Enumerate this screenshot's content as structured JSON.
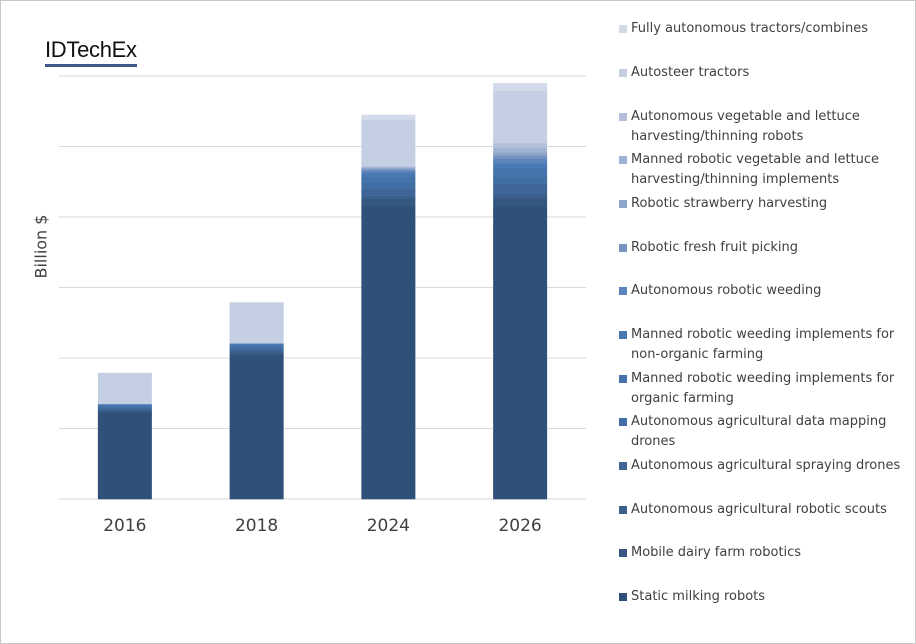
{
  "logo": "IDTechEx",
  "chart_data": {
    "type": "bar",
    "stacked": true,
    "title": "",
    "xlabel": "",
    "ylabel": "Billion $",
    "ylim": [
      0,
      6
    ],
    "grid": true,
    "y_tick_labels_shown": false,
    "legend_placement": "right",
    "categories": [
      "2016",
      "2018",
      "2024",
      "2026"
    ],
    "series": [
      {
        "name": "Static milking robots",
        "color": "#2f5078",
        "values": [
          1.22,
          2.04,
          4.16,
          4.15
        ]
      },
      {
        "name": "Mobile dairy farm robotics",
        "color": "#34577f",
        "values": [
          0.03,
          0.03,
          0.1,
          0.12
        ]
      },
      {
        "name": "Autonomous agricultural robotic scouts",
        "color": "#3a5f8c",
        "values": [
          0.02,
          0.03,
          0.04,
          0.05
        ]
      },
      {
        "name": "Autonomous agricultural  spraying drones",
        "color": "#3e6697",
        "values": [
          0.02,
          0.03,
          0.1,
          0.15
        ]
      },
      {
        "name": "Autonomous agricultural data mapping drones",
        "color": "#426fa3",
        "values": [
          0.02,
          0.03,
          0.1,
          0.1
        ]
      },
      {
        "name": "Manned robotic weeding implements for organic farming",
        "color": "#4673ab",
        "values": [
          0.02,
          0.02,
          0.08,
          0.13
        ]
      },
      {
        "name": "Manned robotic weeding implements for non-organic farming",
        "color": "#4a78b2",
        "values": [
          0.01,
          0.02,
          0.05,
          0.06
        ]
      },
      {
        "name": "Autonomous robotic weeding",
        "color": "#5a84ba",
        "values": [
          0.01,
          0.01,
          0.03,
          0.07
        ]
      },
      {
        "name": "Robotic fresh fruit picking",
        "color": "#7895c2",
        "values": [
          0,
          0,
          0.02,
          0.05
        ]
      },
      {
        "name": "Robotic strawberry harvesting",
        "color": "#8ea6cc",
        "values": [
          0,
          0,
          0.02,
          0.04
        ]
      },
      {
        "name": "Manned robotic vegetable and lettuce harvesting/thinning implements",
        "color": "#a0b2d4",
        "values": [
          0,
          0,
          0.01,
          0.06
        ]
      },
      {
        "name": "Autonomous vegetable and lettuce harvesting/thinning robots",
        "color": "#b2c0dc",
        "values": [
          0,
          0,
          0.01,
          0.07
        ]
      },
      {
        "name": "Autosteer tractors",
        "color": "#c4cfe3",
        "values": [
          0.44,
          0.58,
          0.66,
          0.74
        ]
      },
      {
        "name": "Fully autonomous tractors/combines",
        "color": "#d3dbea",
        "values": [
          0,
          0,
          0.07,
          0.11
        ]
      }
    ]
  },
  "legend_labels": [
    "Fully autonomous tractors/combines",
    "Autosteer tractors",
    "Autonomous vegetable and lettuce\nharvesting/thinning robots",
    "Manned robotic vegetable and lettuce\nharvesting/thinning implements",
    "Robotic strawberry harvesting",
    "Robotic fresh fruit picking",
    "Autonomous robotic weeding",
    "Manned robotic weeding implements for\nnon-organic farming",
    "Manned robotic weeding implements for\norganic farming",
    "Autonomous agricultural data mapping\ndrones",
    "Autonomous agricultural  spraying drones",
    "Autonomous agricultural robotic scouts",
    "Mobile dairy farm robotics",
    "Static milking robots"
  ]
}
